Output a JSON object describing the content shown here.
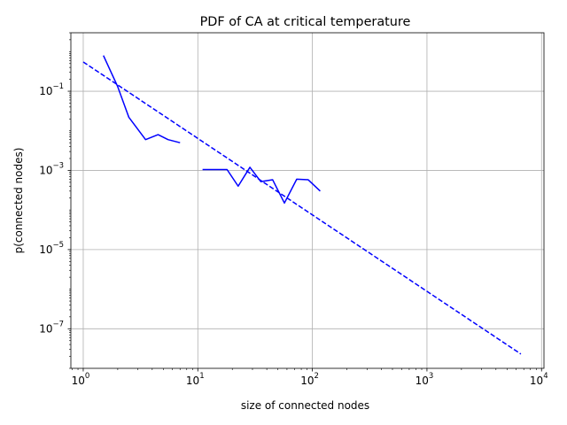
{
  "chart_data": {
    "type": "line",
    "title": "PDF of CA at critical temperature",
    "xlabel": "size of connected nodes",
    "ylabel": "p(connected nodes)",
    "xscale": "log",
    "yscale": "log",
    "xlim": [
      0.78,
      10500
    ],
    "ylim": [
      1e-08,
      3.0
    ],
    "grid": true,
    "x_ticks": [
      {
        "value": 1,
        "base": "10",
        "exp": "0"
      },
      {
        "value": 10,
        "base": "10",
        "exp": "1"
      },
      {
        "value": 100,
        "base": "10",
        "exp": "2"
      },
      {
        "value": 1000,
        "base": "10",
        "exp": "3"
      },
      {
        "value": 10000,
        "base": "10",
        "exp": "4"
      }
    ],
    "y_ticks": [
      {
        "value": 1e-07,
        "base": "10",
        "exp": "−7"
      },
      {
        "value": 1e-05,
        "base": "10",
        "exp": "−5"
      },
      {
        "value": 0.001,
        "base": "10",
        "exp": "−3"
      },
      {
        "value": 0.1,
        "base": "10",
        "exp": "−1"
      }
    ],
    "series": [
      {
        "style": "solid",
        "color": "#0000ff",
        "segments": [
          [
            [
              1.5,
              0.8
            ],
            [
              2.0,
              0.13
            ],
            [
              2.5,
              0.022
            ],
            [
              3.5,
              0.006
            ],
            [
              4.5,
              0.008
            ],
            [
              5.5,
              0.006
            ],
            [
              7.0,
              0.005
            ]
          ],
          [
            [
              11,
              0.00105
            ],
            [
              14,
              0.00105
            ],
            [
              18,
              0.00105
            ],
            [
              22.5,
              0.0004
            ],
            [
              28.5,
              0.0012
            ],
            [
              35.5,
              0.00052
            ],
            [
              45,
              0.00058
            ],
            [
              57,
              0.00015
            ],
            [
              73,
              0.0006
            ],
            [
              92,
              0.00058
            ],
            [
              117,
              0.0003
            ]
          ]
        ]
      },
      {
        "style": "dashed",
        "color": "#0000ff",
        "segments": [
          [
            [
              1.0,
              0.55
            ],
            [
              6600,
              2.3e-08
            ]
          ]
        ]
      }
    ]
  }
}
